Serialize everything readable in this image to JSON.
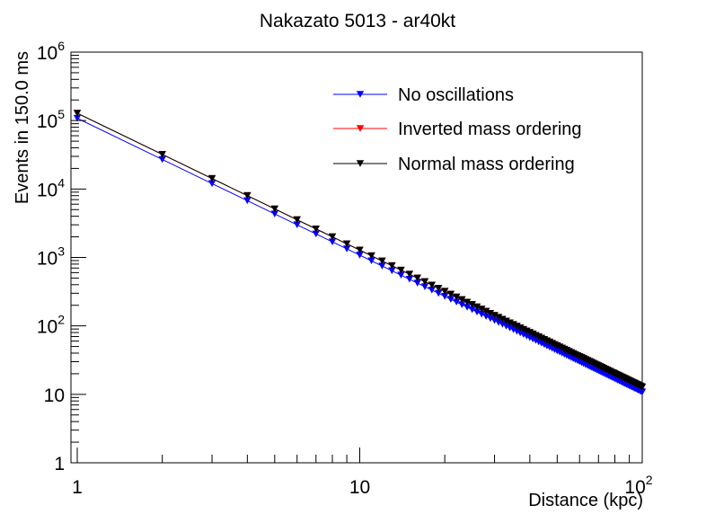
{
  "chart_data": {
    "type": "line",
    "title": "Nakazato 5013 - ar40kt",
    "xlabel": "Distance (kpc)",
    "ylabel": "Events in 150.0 ms",
    "xscale": "log",
    "yscale": "log",
    "xlim": [
      0.95,
      100
    ],
    "ylim": [
      1,
      1000000
    ],
    "grid": false,
    "legend_position": "top-right",
    "x_ticks": [
      {
        "value": 1,
        "label": "1",
        "exp": ""
      },
      {
        "value": 10,
        "label": "10",
        "exp": ""
      },
      {
        "value": 100,
        "label": "10",
        "exp": "2"
      }
    ],
    "y_ticks": [
      {
        "value": 1,
        "label": "1",
        "exp": ""
      },
      {
        "value": 10,
        "label": "10",
        "exp": ""
      },
      {
        "value": 100,
        "label": "10",
        "exp": "2"
      },
      {
        "value": 1000,
        "label": "10",
        "exp": "3"
      },
      {
        "value": 10000,
        "label": "10",
        "exp": "4"
      },
      {
        "value": 100000,
        "label": "10",
        "exp": "5"
      },
      {
        "value": 1000000,
        "label": "10",
        "exp": "6"
      }
    ],
    "x_start": 1,
    "x_end": 100,
    "x_step": 1,
    "series": [
      {
        "name": "No oscillations",
        "color": "#0000ff",
        "marker": "down-triangle",
        "value_at_1kpc": 108000
      },
      {
        "name": "Inverted mass ordering",
        "color": "#ff0000",
        "marker": "down-triangle",
        "value_at_1kpc": 128000
      },
      {
        "name": "Normal mass ordering",
        "color": "#000000",
        "marker": "down-triangle",
        "value_at_1kpc": 128000
      }
    ]
  }
}
